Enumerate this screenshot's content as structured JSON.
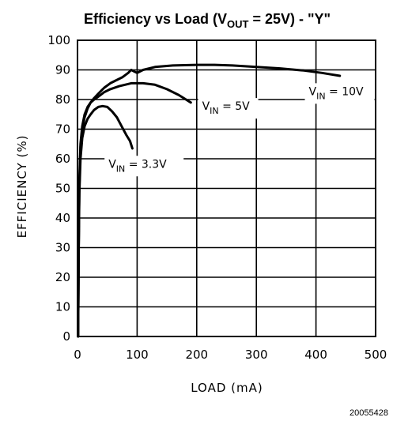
{
  "chart_data": {
    "type": "line",
    "title": {
      "prefix": "Efficiency vs Load (V",
      "sub": "OUT",
      "suffix": " = 25V) - \"Y\""
    },
    "xlabel": "LOAD (mA)",
    "ylabel": "EFFICIENCY (%)",
    "xlim": [
      0,
      500
    ],
    "ylim": [
      0,
      100
    ],
    "xticks": [
      0,
      100,
      200,
      300,
      400,
      500
    ],
    "yticks": [
      0,
      10,
      20,
      30,
      40,
      50,
      60,
      70,
      80,
      90,
      100
    ],
    "grid": true,
    "series": [
      {
        "name": "V_IN = 10V",
        "label": {
          "main": "V",
          "sub": "IN",
          "rest": " = 10V"
        },
        "x": [
          1,
          2,
          3,
          5,
          8,
          12,
          17,
          22,
          28,
          35,
          45,
          55,
          65,
          75,
          85,
          90,
          95,
          100,
          110,
          130,
          160,
          200,
          230,
          260,
          300,
          340,
          380,
          410,
          440
        ],
        "y": [
          0,
          30,
          50,
          64,
          70,
          74,
          77,
          79,
          80.5,
          82,
          84,
          85.5,
          86.5,
          87.5,
          89,
          90,
          89.5,
          89,
          90,
          91,
          91.5,
          91.7,
          91.7,
          91.5,
          91,
          90.5,
          89.8,
          89,
          88
        ]
      },
      {
        "name": "V_IN = 5V",
        "label": {
          "main": "V",
          "sub": "IN",
          "rest": " = 5V"
        },
        "x": [
          1,
          2,
          3,
          5,
          8,
          12,
          17,
          22,
          28,
          35,
          45,
          55,
          70,
          90,
          110,
          130,
          150,
          170,
          190
        ],
        "y": [
          0,
          30,
          52,
          65,
          71,
          75,
          77.5,
          79,
          80,
          81,
          82.5,
          83.5,
          84.5,
          85.5,
          85.5,
          85,
          83.5,
          81.5,
          79
        ]
      },
      {
        "name": "V_IN = 3.3V",
        "label": {
          "main": "V",
          "sub": "IN",
          "rest": " = 3.3V"
        },
        "x": [
          1,
          2,
          3,
          5,
          8,
          12,
          17,
          22,
          28,
          35,
          42,
          50,
          58,
          66,
          74,
          82,
          88,
          92
        ],
        "y": [
          0,
          28,
          48,
          60,
          67,
          71,
          73.5,
          75,
          76.5,
          77.5,
          77.8,
          77.5,
          76,
          74,
          71,
          68,
          66,
          63.5
        ]
      }
    ],
    "figure_id": "20055428"
  }
}
